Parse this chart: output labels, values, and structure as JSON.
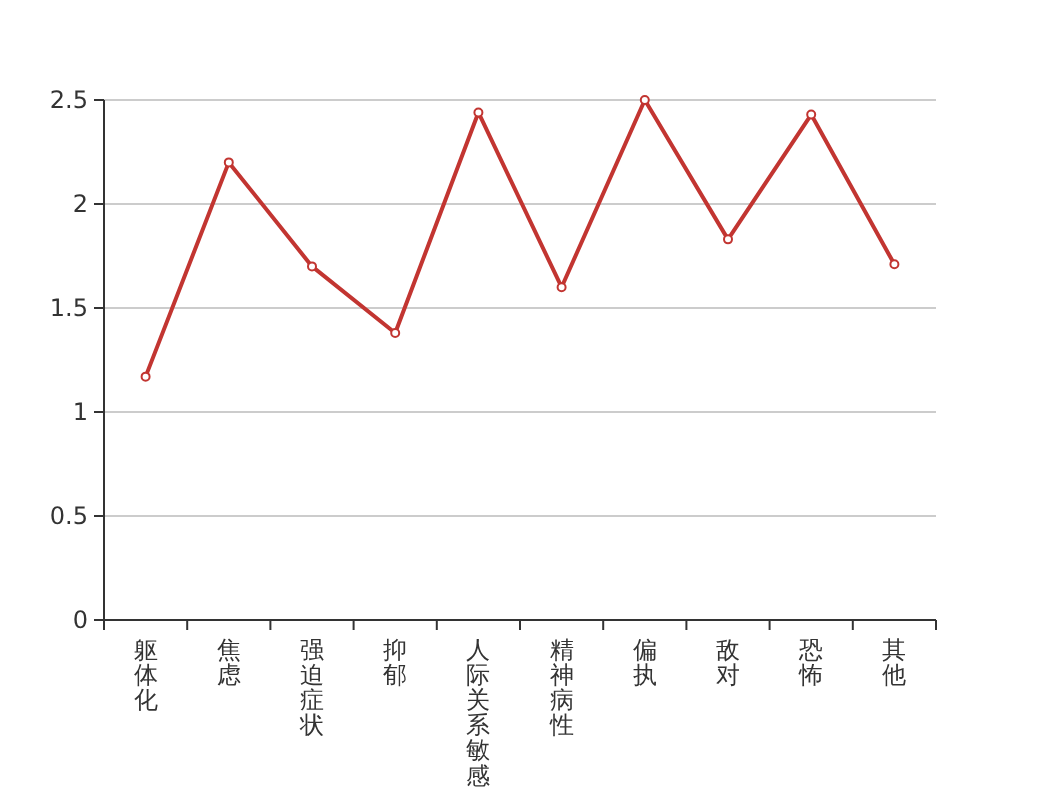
{
  "chart_data": {
    "type": "line",
    "categories": [
      "躯体化",
      "焦虑",
      "强迫症状",
      "抑郁",
      "人际关系敏感",
      "精神病性",
      "偏执",
      "敌对",
      "恐怖",
      "其他"
    ],
    "values": [
      1.17,
      2.2,
      1.7,
      1.38,
      2.44,
      1.6,
      2.5,
      1.83,
      2.43,
      1.71
    ],
    "color": "#c23531",
    "ylim": [
      0,
      2.5
    ],
    "yticks": [
      0,
      0.5,
      1,
      1.5,
      2,
      2.5
    ],
    "grid": "y",
    "marker": "circle"
  }
}
